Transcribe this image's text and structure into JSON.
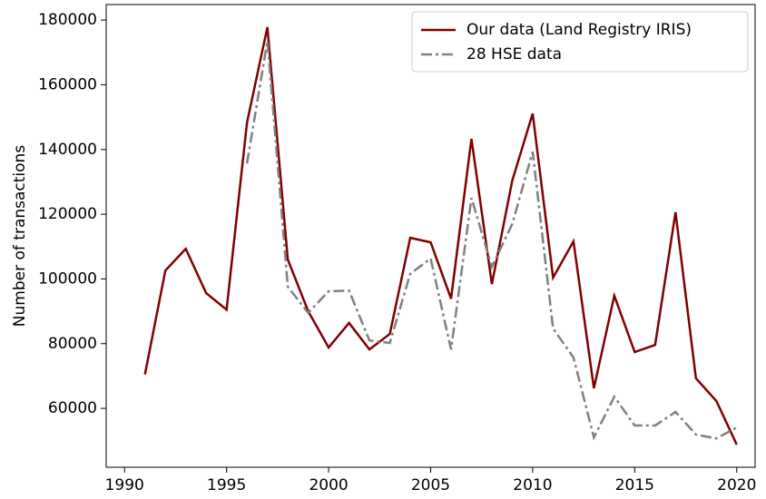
{
  "chart_data": {
    "type": "line",
    "y_label": "Number of transactions",
    "x": [
      1991,
      1992,
      1993,
      1994,
      1995,
      1996,
      1997,
      1998,
      1999,
      2000,
      2001,
      2002,
      2003,
      2004,
      2005,
      2006,
      2007,
      2008,
      2009,
      2010,
      2011,
      2012,
      2013,
      2014,
      2015,
      2016,
      2017,
      2018,
      2019,
      2020
    ],
    "series": [
      {
        "name": "Our data (Land Registry IRIS)",
        "color": "#800000",
        "linestyle": "solid",
        "values": [
          70500,
          102600,
          109300,
          95600,
          90500,
          148300,
          177800,
          106000,
          90000,
          78800,
          86400,
          78200,
          83000,
          112700,
          111300,
          93900,
          143300,
          98400,
          130400,
          151100,
          100400,
          111600,
          66200,
          94800,
          77400,
          79600,
          120600,
          69300,
          62300,
          48800
        ]
      },
      {
        "name": "28 HSE data",
        "color": "#808080",
        "linestyle": "dashdot",
        "values": [
          null,
          null,
          null,
          null,
          null,
          135700,
          173500,
          97600,
          89500,
          96200,
          96400,
          81000,
          80200,
          101600,
          106300,
          78200,
          125000,
          103700,
          117000,
          139300,
          84700,
          75700,
          51000,
          63600,
          54700,
          54700,
          58900,
          51900,
          50700,
          54100
        ]
      }
    ],
    "xlim": [
      1989.1,
      2020.9
    ],
    "xticks": [
      1990,
      1995,
      2000,
      2005,
      2010,
      2015,
      2020
    ],
    "ylim": [
      41800,
      184800
    ],
    "yticks": [
      60000,
      80000,
      100000,
      120000,
      140000,
      160000,
      180000
    ],
    "legend": "upper right"
  }
}
